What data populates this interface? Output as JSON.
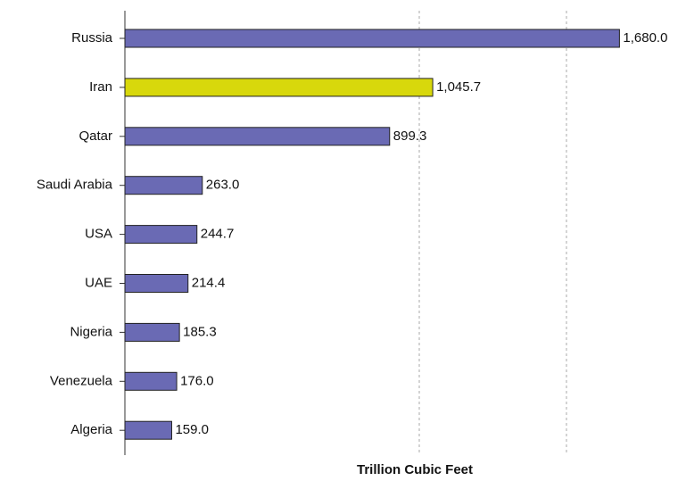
{
  "chart_data": {
    "type": "hbar",
    "x_label": "Trillion Cubic Feet",
    "categories": [
      "Russia",
      "Iran",
      "Qatar",
      "Saudi Arabia",
      "USA",
      "UAE",
      "Nigeria",
      "Venezuela",
      "Algeria"
    ],
    "values": [
      1680.0,
      1045.7,
      899.3,
      263.0,
      244.7,
      214.4,
      185.3,
      176.0,
      159.0
    ],
    "value_labels": [
      "1,680.0",
      "1,045.7",
      "899.3",
      "263.0",
      "244.7",
      "214.4",
      "185.3",
      "176.0",
      "159.0"
    ],
    "colors": [
      "#6a6ab4",
      "#d8d80c",
      "#6a6ab4",
      "#6a6ab4",
      "#6a6ab4",
      "#6a6ab4",
      "#6a6ab4",
      "#6a6ab4",
      "#6a6ab4"
    ],
    "xlim": [
      0,
      1900
    ],
    "xticks": [
      1000,
      1500
    ],
    "grid": true
  }
}
